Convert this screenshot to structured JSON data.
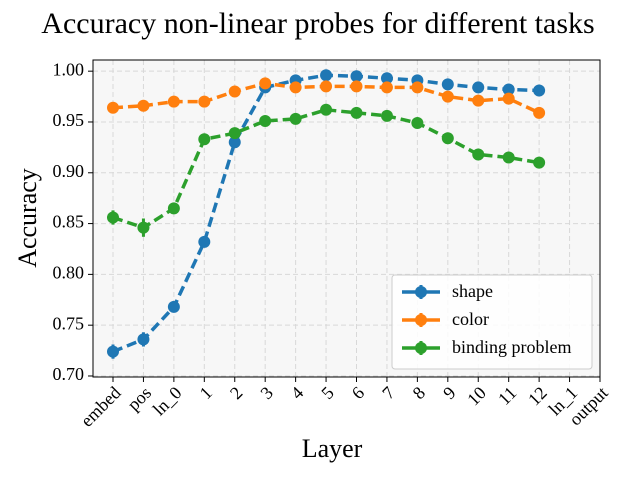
{
  "chart_data": {
    "type": "line",
    "title": "Accuracy non-linear probes for different tasks",
    "x_label": "Layer",
    "y_label": "Accuracy",
    "categories": [
      "embed",
      "pos",
      "ln_0",
      "1",
      "2",
      "3",
      "4",
      "5",
      "6",
      "7",
      "8",
      "9",
      "10",
      "11",
      "12",
      "ln_1",
      "output"
    ],
    "series": [
      {
        "name": "shape",
        "color": "#1f77b4",
        "values": [
          0.724,
          0.736,
          0.768,
          0.832,
          0.93,
          0.984,
          0.991,
          0.996,
          0.995,
          0.993,
          0.991,
          0.987,
          0.984,
          0.982,
          0.981,
          null,
          null
        ],
        "errors": [
          0.007,
          0.007,
          0.004,
          0.005,
          0.005,
          0.002,
          0.002,
          0.001,
          0.001,
          0.001,
          0.001,
          0.001,
          0.001,
          0.001,
          0.001,
          null,
          null
        ]
      },
      {
        "name": "color",
        "color": "#ff7f0e",
        "values": [
          0.964,
          0.966,
          0.97,
          0.97,
          0.98,
          0.988,
          0.984,
          0.985,
          0.985,
          0.984,
          0.984,
          0.975,
          0.971,
          0.973,
          0.959,
          null,
          null
        ],
        "errors": [
          0.003,
          0.003,
          0.002,
          0.002,
          0.002,
          0.002,
          0.002,
          0.002,
          0.002,
          0.002,
          0.002,
          0.004,
          0.003,
          0.003,
          0.004,
          null,
          null
        ]
      },
      {
        "name": "binding problem",
        "color": "#2ca02c",
        "values": [
          0.856,
          0.846,
          0.865,
          0.933,
          0.939,
          0.951,
          0.953,
          0.962,
          0.959,
          0.956,
          0.949,
          0.934,
          0.918,
          0.915,
          0.91,
          null,
          null
        ],
        "errors": [
          0.007,
          0.009,
          0.004,
          0.005,
          0.004,
          0.003,
          0.003,
          0.003,
          0.003,
          0.003,
          0.003,
          0.004,
          0.004,
          0.004,
          0.003,
          null,
          null
        ]
      }
    ],
    "ylim": [
      0.699,
      1.011
    ],
    "yticks": [
      {
        "value": 0.7,
        "label": "0.70"
      },
      {
        "value": 0.75,
        "label": "0.75"
      },
      {
        "value": 0.8,
        "label": "0.80"
      },
      {
        "value": 0.85,
        "label": "0.85"
      },
      {
        "value": 0.9,
        "label": "0.90"
      },
      {
        "value": 0.95,
        "label": "0.95"
      },
      {
        "value": 1.0,
        "label": "1.00"
      }
    ],
    "grid": true,
    "legend": "lower right"
  }
}
